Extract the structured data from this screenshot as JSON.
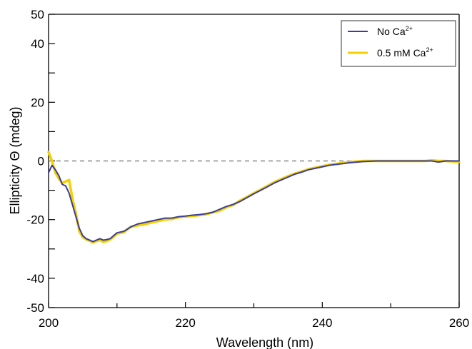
{
  "chart_data": {
    "type": "line",
    "title": "",
    "xlabel": "Wavelength (nm)",
    "ylabel": "Ellipticity Θ (mdeg)",
    "xlim": [
      200,
      260
    ],
    "ylim": [
      -50,
      50
    ],
    "x_ticks": [
      200,
      220,
      240,
      260
    ],
    "x_minor_ticks": [
      210,
      230,
      250
    ],
    "y_ticks": [
      -50,
      -40,
      -20,
      0,
      20,
      40,
      50
    ],
    "y_minor_ticks": [
      -30,
      -10,
      10,
      30
    ],
    "zero_line": {
      "y": 0,
      "style": "dashed",
      "color": "#888888"
    },
    "legend_position": "top-right",
    "legend": [
      {
        "base": "No Ca",
        "sup": "2+",
        "color": "#3a3e9c"
      },
      {
        "base": "0.5 mM Ca",
        "sup": "2+",
        "color": "#f5d000"
      }
    ],
    "series": [
      {
        "name": "No Ca2+",
        "color": "#3a3e9c",
        "x": [
          200,
          200.5,
          201,
          201.5,
          202,
          202.5,
          203,
          203.5,
          204,
          204.5,
          205,
          205.5,
          206,
          206.5,
          207,
          207.5,
          208,
          208.5,
          209,
          209.5,
          210,
          211,
          212,
          213,
          214,
          215,
          216,
          217,
          218,
          219,
          220,
          221,
          222,
          223,
          224,
          225,
          226,
          227,
          228,
          229,
          230,
          231,
          232,
          233,
          234,
          235,
          236,
          237,
          238,
          239,
          240,
          241,
          242,
          243,
          244,
          245,
          246,
          247,
          248,
          249,
          250,
          252,
          254,
          255,
          256,
          257,
          258,
          260
        ],
        "y": [
          -4,
          -1.5,
          -3,
          -5,
          -8,
          -8.5,
          -11,
          -15,
          -19,
          -23,
          -25.5,
          -26.5,
          -27,
          -27.5,
          -27,
          -26.5,
          -27,
          -26.8,
          -26.5,
          -25.5,
          -24.5,
          -24,
          -22.5,
          -21.5,
          -21,
          -20.5,
          -20,
          -19.5,
          -19.5,
          -19,
          -18.8,
          -18.5,
          -18.3,
          -18,
          -17.5,
          -16.5,
          -15.5,
          -14.8,
          -13.8,
          -12.5,
          -11.2,
          -10,
          -8.8,
          -7.5,
          -6.5,
          -5.5,
          -4.5,
          -3.8,
          -3,
          -2.5,
          -2,
          -1.5,
          -1.2,
          -0.9,
          -0.6,
          -0.4,
          -0.2,
          -0.1,
          0,
          0,
          0,
          0,
          0,
          0,
          0,
          -0.4,
          0,
          0
        ]
      },
      {
        "name": "0.5 mM Ca2+",
        "color": "#f5d000",
        "x": [
          200,
          200.5,
          201,
          201.5,
          202,
          202.5,
          203,
          203.5,
          204,
          204.5,
          205,
          205.5,
          206,
          206.5,
          207,
          207.5,
          208,
          208.5,
          209,
          209.5,
          210,
          211,
          212,
          213,
          214,
          215,
          216,
          217,
          218,
          219,
          220,
          221,
          222,
          223,
          224,
          225,
          226,
          227,
          228,
          229,
          230,
          231,
          232,
          233,
          234,
          235,
          236,
          237,
          238,
          239,
          240,
          241,
          242,
          243,
          244,
          245,
          246,
          247,
          248,
          249,
          250,
          252,
          254,
          255,
          256,
          257,
          258,
          260
        ],
        "y": [
          3,
          0,
          -4,
          -6,
          -7.5,
          -7,
          -6.5,
          -13,
          -18,
          -24,
          -26,
          -26.8,
          -27.2,
          -27.8,
          -27.3,
          -27,
          -27.6,
          -27.3,
          -26.8,
          -25.8,
          -24.8,
          -24.3,
          -22.5,
          -22,
          -21.6,
          -21,
          -20.5,
          -20,
          -19.8,
          -19.2,
          -19,
          -18.8,
          -18.5,
          -18.2,
          -17.5,
          -17,
          -15.8,
          -15,
          -13.5,
          -12.3,
          -11,
          -9.8,
          -8.5,
          -7.2,
          -6.2,
          -5.2,
          -4.3,
          -3.6,
          -2.8,
          -2.3,
          -1.8,
          -1.3,
          -1,
          -0.7,
          -0.4,
          -0.2,
          0,
          0,
          0,
          0,
          0,
          0,
          0,
          0,
          0.2,
          0,
          0,
          -0.3
        ]
      }
    ]
  }
}
